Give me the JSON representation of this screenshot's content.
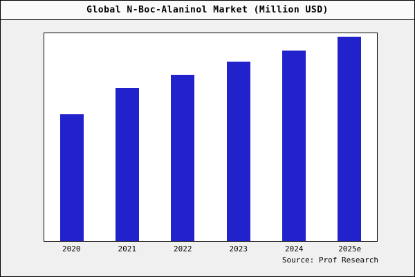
{
  "frame": {
    "title": "Global N-Boc-Alaninol Market (Million USD)",
    "source": "Source: Prof Research"
  },
  "colors": {
    "bar_fill": "#2222cc",
    "outer_background": "#f0f0f0",
    "plot_background": "#ffffff",
    "border": "#000000"
  },
  "chart_data": {
    "type": "bar",
    "title": "Global N-Boc-Alaninol Market (Million USD)",
    "categories": [
      "2020",
      "2021",
      "2022",
      "2023",
      "2024",
      "2025e"
    ],
    "values": [
      67,
      81,
      88,
      95,
      101,
      108
    ],
    "xlabel": "",
    "ylabel": "",
    "ylim": [
      0,
      110
    ],
    "grid": false,
    "legend": false,
    "y_axis_ticks_visible": false,
    "bar_color": "#2222cc",
    "source_note": "Source: Prof Research"
  }
}
